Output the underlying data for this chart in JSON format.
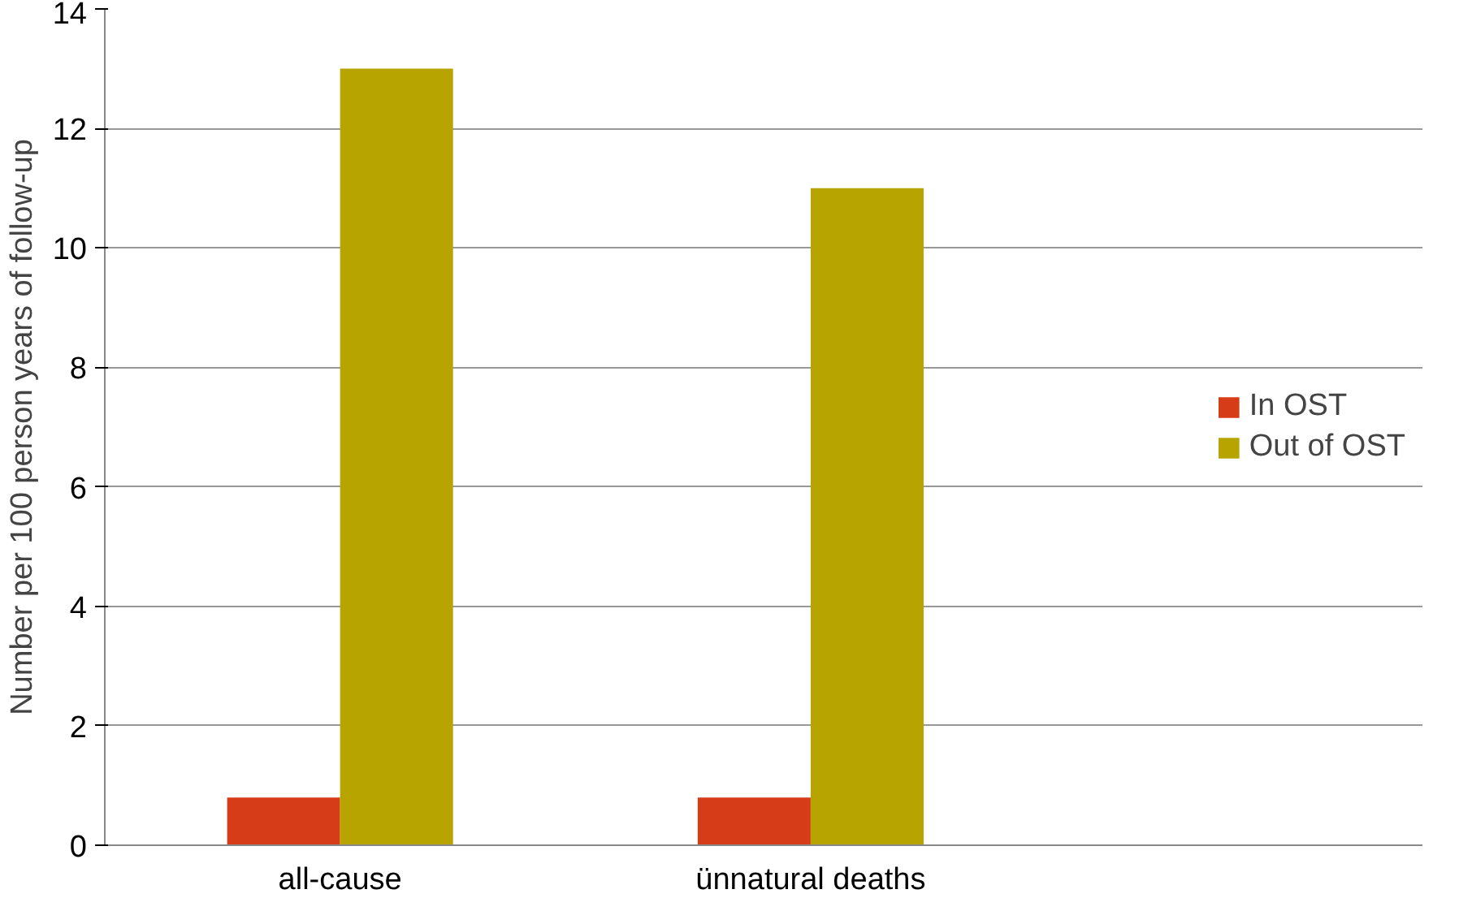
{
  "chart_data": {
    "type": "bar",
    "ylabel": "Number per 100 person years of follow-up",
    "categories": [
      "all-cause",
      "ünnatural deaths"
    ],
    "series": [
      {
        "name": "In OST",
        "color": "#d63c18",
        "values": [
          0.8,
          0.8
        ]
      },
      {
        "name": "Out of OST",
        "color": "#b8a400",
        "values": [
          13,
          11
        ]
      }
    ],
    "ylim": [
      0,
      14
    ],
    "yticks": [
      0,
      2,
      4,
      6,
      8,
      10,
      12,
      14
    ],
    "grid": "y",
    "legend": "right"
  }
}
